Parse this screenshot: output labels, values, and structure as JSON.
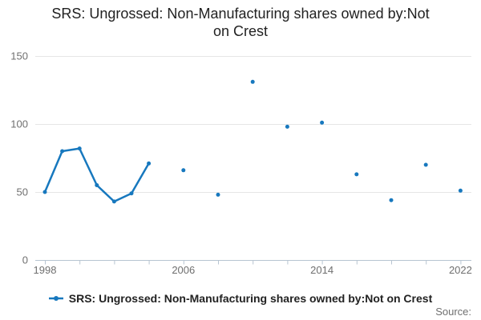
{
  "header": {
    "title_lines": [
      "SRS: Ungrossed: Non-Manufacturing shares owned by:Not",
      "on Crest"
    ]
  },
  "legend": {
    "label": "SRS: Ungrossed: Non-Manufacturing shares owned by:Not on Crest",
    "marker": "line-dot-icon"
  },
  "footer": {
    "source_label": "Source:"
  },
  "colors": {
    "series": "#1778be",
    "gridline": "#e6e6e6",
    "axis": "#b7c4d1",
    "tick_label": "#6f6f6f",
    "title_text": "#222222"
  },
  "chart_data": {
    "type": "line",
    "title": "SRS: Ungrossed: Non-Manufacturing shares owned by:Not on Crest",
    "xlabel": "",
    "ylabel": "",
    "series": [
      {
        "name": "SRS: Ungrossed: Non-Manufacturing shares owned by:Not on Crest",
        "points": [
          [
            1998,
            50
          ],
          [
            1999,
            80
          ],
          [
            2000,
            82
          ],
          [
            2001,
            55
          ],
          [
            2002,
            43
          ],
          [
            2003,
            49
          ],
          [
            2004,
            71
          ],
          [
            2006,
            66
          ],
          [
            2008,
            48
          ],
          [
            2010,
            131
          ],
          [
            2012,
            98
          ],
          [
            2014,
            101
          ],
          [
            2016,
            63
          ],
          [
            2018,
            44
          ],
          [
            2020,
            70
          ],
          [
            2022,
            51
          ]
        ]
      }
    ],
    "note": "Years 1998-2004 are consecutive and drawn as a connected line; later biennial points (2006-2022) are isolated markers",
    "x_range": [
      1998,
      2022
    ],
    "x_minor_tick_step": 2,
    "x_ticks_labeled": [
      1998,
      2006,
      2014,
      2022
    ],
    "y_range": [
      0,
      150
    ],
    "y_ticks": [
      0,
      50,
      100,
      150
    ],
    "grid": "horizontal",
    "legend_position": "bottom"
  }
}
